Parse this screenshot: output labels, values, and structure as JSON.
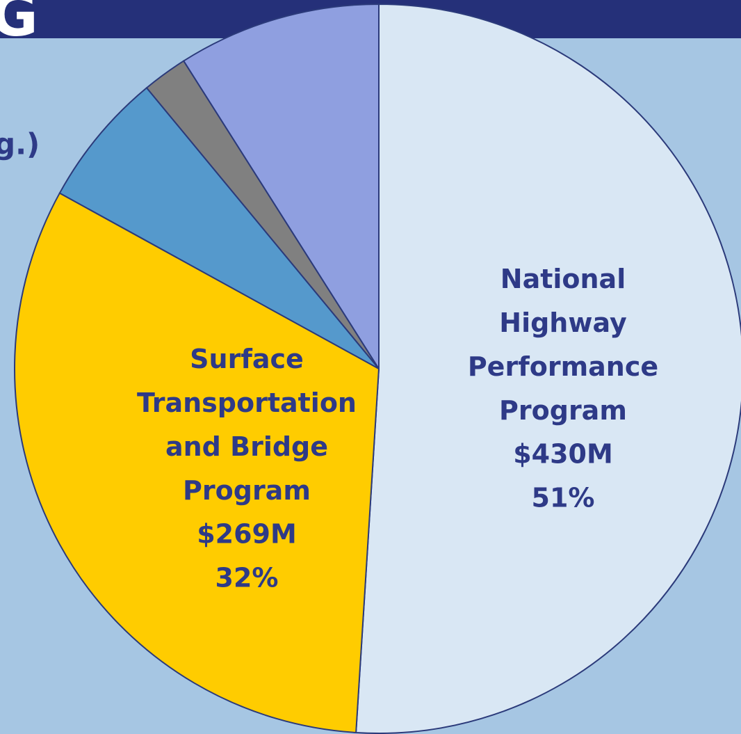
{
  "header": {
    "title": "G"
  },
  "fragment": "g.)",
  "chart_data": {
    "type": "pie",
    "categories": [
      "National\nHighway\nPerformance\nProgram",
      "Surface\nTransportation\nand Bridge\nProgram",
      null,
      null,
      null
    ],
    "values": [
      51,
      32,
      6,
      2,
      9
    ],
    "value_labels": [
      "51%",
      "32%",
      null,
      null,
      null
    ],
    "amount_labels": [
      "$430M",
      "$269M",
      null,
      null,
      null
    ],
    "colors": [
      "#d9e7f4",
      "#ffcc00",
      "#5599cc",
      "#808080",
      "#8f9fe0"
    ]
  }
}
